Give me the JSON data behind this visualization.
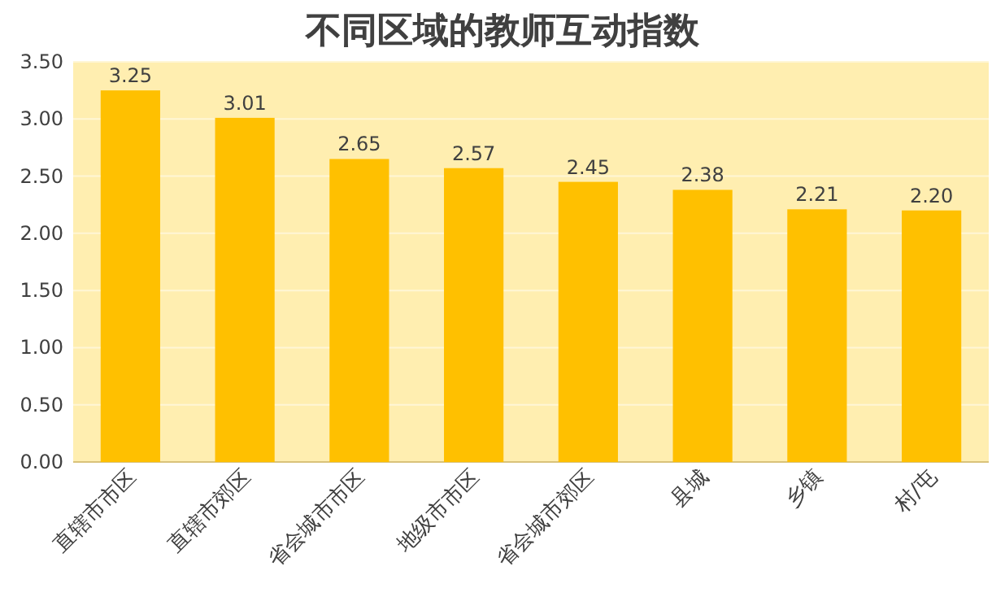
{
  "chart_data": {
    "type": "bar",
    "title": "不同区域的教师互动指数",
    "categories": [
      "直辖市市区",
      "直辖市郊区",
      "省会城市市区",
      "地级市市区",
      "省会城市郊区",
      "县城",
      "乡镇",
      "村/屯"
    ],
    "values": [
      3.25,
      3.01,
      2.65,
      2.57,
      2.45,
      2.38,
      2.21,
      2.2
    ],
    "color": "#ffc000",
    "ylim": [
      0,
      3.5
    ],
    "yticks": [
      {
        "value": 0,
        "label": "0.00"
      },
      {
        "value": 0.5,
        "label": "0.50"
      },
      {
        "value": 1,
        "label": "1.00"
      },
      {
        "value": 1.5,
        "label": "1.50"
      },
      {
        "value": 2,
        "label": "2.00"
      },
      {
        "value": 2.5,
        "label": "2.50"
      },
      {
        "value": 3,
        "label": "3.00"
      },
      {
        "value": 3.5,
        "label": "3.50"
      }
    ],
    "value_labels": [
      "3.25",
      "3.01",
      "2.65",
      "2.57",
      "2.45",
      "2.38",
      "2.21",
      "2.20"
    ],
    "grid": "y"
  }
}
